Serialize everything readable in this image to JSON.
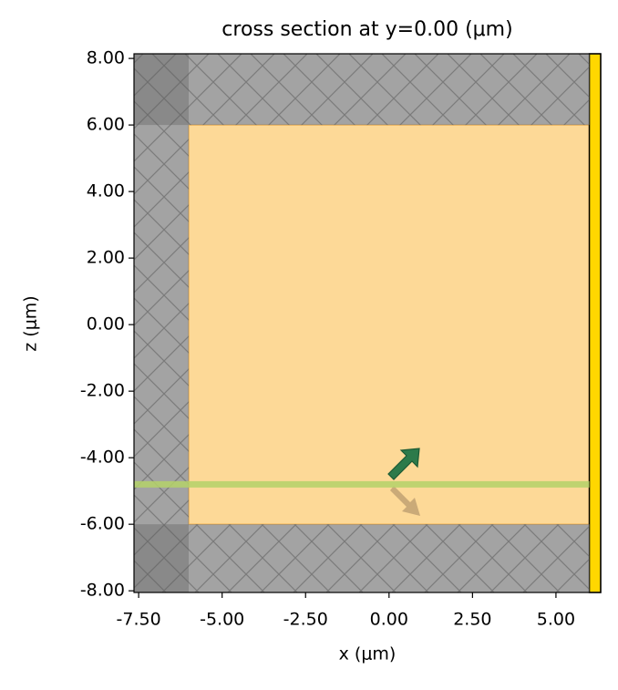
{
  "chart_data": {
    "type": "regions",
    "title": "cross section at y=0.00 (μm)",
    "x_label": "x (μm)",
    "y_label": "z (μm)",
    "xlim": [
      -7.64,
      6.34
    ],
    "ylim": [
      -8.05,
      8.14
    ],
    "xticks": [
      {
        "value": -7.5,
        "label": "-7.50"
      },
      {
        "value": -5,
        "label": "-5.00"
      },
      {
        "value": -2.5,
        "label": "-2.50"
      },
      {
        "value": 0,
        "label": "0.00"
      },
      {
        "value": 2.5,
        "label": "2.50"
      },
      {
        "value": 5,
        "label": "5.00"
      }
    ],
    "yticks": [
      {
        "value": -8,
        "label": "-8.00"
      },
      {
        "value": -6,
        "label": "-6.00"
      },
      {
        "value": -4,
        "label": "-4.00"
      },
      {
        "value": -2,
        "label": "-2.00"
      },
      {
        "value": 0,
        "label": "0.00"
      },
      {
        "value": 2,
        "label": "2.00"
      },
      {
        "value": 4,
        "label": "4.00"
      },
      {
        "value": 6,
        "label": "6.00"
      },
      {
        "value": 8,
        "label": "8.00"
      }
    ],
    "structures": [
      {
        "x": [
          -6,
          6
        ],
        "y": [
          -6,
          6
        ],
        "color": "#fdd997",
        "edge": "#f4b85a"
      },
      {
        "x": [
          6,
          6.34
        ],
        "y": [
          -8.05,
          8.14
        ],
        "color": "#ffd700",
        "edge": "#000000"
      }
    ],
    "pml": {
      "color": "#808080",
      "regions": [
        {
          "x": [
            -7.64,
            -6
          ],
          "y": [
            -8.05,
            8.14
          ]
        },
        {
          "x": [
            -7.64,
            6
          ],
          "y": [
            6,
            8.14
          ]
        },
        {
          "x": [
            -7.64,
            6
          ],
          "y": [
            -8.05,
            -6
          ]
        }
      ]
    },
    "source": {
      "y": -4.8,
      "x": [
        -7.64,
        6
      ],
      "color": "#b5d36a"
    }
  }
}
